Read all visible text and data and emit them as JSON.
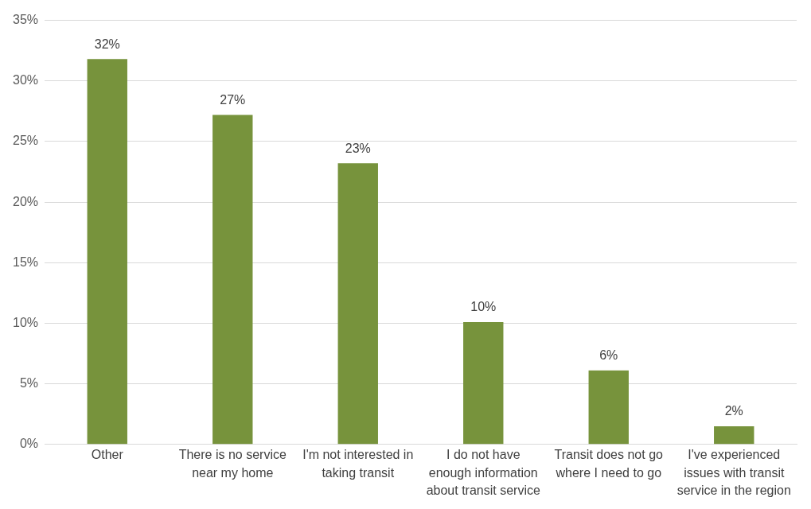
{
  "chart_data": {
    "type": "bar",
    "categories": [
      "Other",
      "There is no service near my home",
      "I'm not interested in taking transit",
      "I do not have enough information about transit service",
      "Transit does not go where I need to go",
      "I've experienced issues with transit service in the region"
    ],
    "values": [
      31.8,
      27.2,
      23.2,
      10.1,
      6.1,
      1.5
    ],
    "value_labels": [
      "32%",
      "27%",
      "23%",
      "10%",
      "6%",
      "2%"
    ],
    "color": "#77933c",
    "ylim": [
      0,
      35
    ],
    "yticks": [
      {
        "value": 0,
        "label": "0%"
      },
      {
        "value": 5,
        "label": "5%"
      },
      {
        "value": 10,
        "label": "10%"
      },
      {
        "value": 15,
        "label": "15%"
      },
      {
        "value": 20,
        "label": "20%"
      },
      {
        "value": 25,
        "label": "25%"
      },
      {
        "value": 30,
        "label": "30%"
      },
      {
        "value": 35,
        "label": "35%"
      }
    ],
    "grid": "y",
    "legend": false
  }
}
